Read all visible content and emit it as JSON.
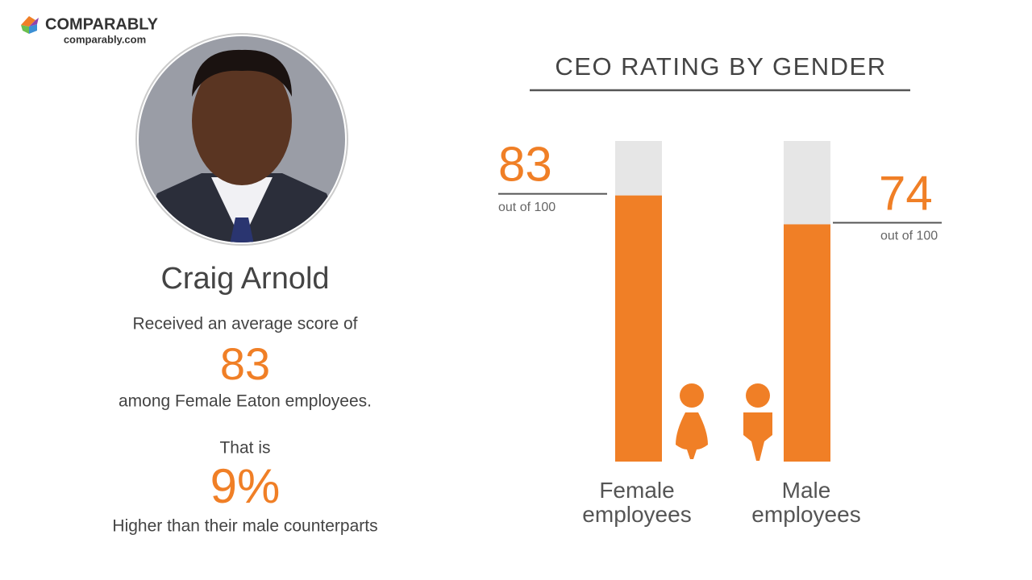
{
  "brand": {
    "name": "COMPARABLY",
    "url": "comparably.com"
  },
  "profile": {
    "name": "Craig Arnold",
    "line1": "Received an average score of",
    "line2": "among Female Eaton employees.",
    "line3": "That is",
    "difference": "9%",
    "line4": "Higher than their male counterparts"
  },
  "chart_data": {
    "type": "bar",
    "title": "CEO RATING BY GENDER",
    "categories": [
      "Female employees",
      "Male employees"
    ],
    "values": [
      83,
      74
    ],
    "value_note": "out of 100",
    "ylim": [
      0,
      100
    ],
    "color": "#f07f26",
    "track_color": "#e6e6e6"
  }
}
